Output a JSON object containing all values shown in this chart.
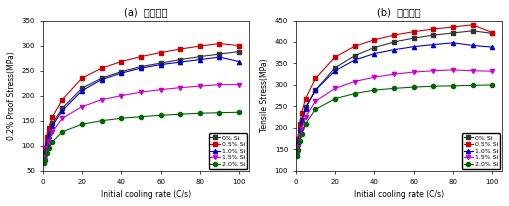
{
  "title_a": "(a)  항복강도",
  "title_b": "(b)  인장강도",
  "xlabel": "Initial cooling rate (C/s)",
  "ylabel_a": "0.2% Proof Stress(MPa)",
  "ylabel_b": "Tensile Stress(MPa)",
  "xlim": [
    0,
    105
  ],
  "ylim_a": [
    50,
    350
  ],
  "ylim_b": [
    100,
    450
  ],
  "yticks_a": [
    50,
    100,
    150,
    200,
    250,
    300,
    350
  ],
  "yticks_b": [
    100,
    150,
    200,
    250,
    300,
    350,
    400,
    450
  ],
  "xticks": [
    0,
    20,
    40,
    60,
    80,
    100
  ],
  "series": [
    "0% Si",
    "0.5% Si",
    "1.0% Si",
    "1.5% Si",
    "2.0% Si"
  ],
  "colors": [
    "#333333",
    "#cc0000",
    "#0000cc",
    "#cc00cc",
    "#006600"
  ],
  "markers": [
    "s",
    "s",
    "^",
    "v",
    "o"
  ],
  "x_points": [
    0.5,
    1,
    2,
    3,
    5,
    10,
    20,
    30,
    40,
    50,
    60,
    70,
    80,
    90,
    100
  ],
  "proof_stress": {
    "0% Si": [
      75,
      90,
      110,
      125,
      145,
      175,
      215,
      235,
      248,
      258,
      265,
      272,
      278,
      283,
      288
    ],
    "0.5% Si": [
      78,
      95,
      118,
      135,
      158,
      192,
      235,
      255,
      268,
      278,
      286,
      293,
      299,
      304,
      300
    ],
    "1.0% Si": [
      72,
      85,
      105,
      120,
      140,
      170,
      210,
      232,
      245,
      255,
      262,
      267,
      272,
      277,
      268
    ],
    "1.5% Si": [
      68,
      78,
      95,
      108,
      128,
      155,
      178,
      192,
      200,
      207,
      212,
      216,
      219,
      222,
      222
    ],
    "2.0% Si": [
      65,
      72,
      85,
      95,
      108,
      128,
      143,
      150,
      155,
      158,
      161,
      163,
      165,
      166,
      167
    ]
  },
  "tensile_stress": {
    "0% Si": [
      148,
      168,
      198,
      218,
      248,
      288,
      340,
      368,
      387,
      400,
      409,
      416,
      421,
      426,
      420
    ],
    "0.5% Si": [
      152,
      175,
      210,
      235,
      268,
      315,
      365,
      390,
      405,
      416,
      424,
      430,
      435,
      440,
      422
    ],
    "1.0% Si": [
      145,
      165,
      195,
      215,
      245,
      288,
      333,
      358,
      373,
      382,
      389,
      394,
      398,
      392,
      388
    ],
    "1.5% Si": [
      138,
      155,
      180,
      198,
      225,
      262,
      292,
      308,
      318,
      325,
      330,
      333,
      335,
      333,
      332
    ],
    "2.0% Si": [
      135,
      148,
      170,
      185,
      210,
      243,
      268,
      280,
      288,
      292,
      295,
      297,
      298,
      299,
      300
    ]
  },
  "legend_loc": "lower right",
  "marker_size": 3,
  "linewidth": 0.8,
  "font_size_label": 5.5,
  "font_size_tick": 5,
  "font_size_legend": 4.5,
  "font_size_title": 7
}
